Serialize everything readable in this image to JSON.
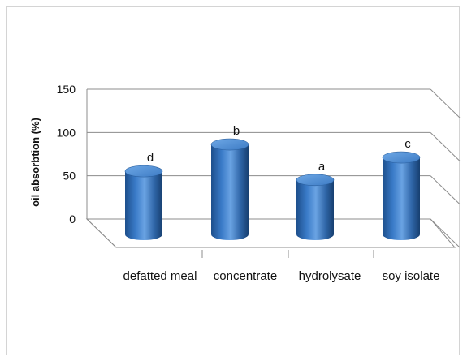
{
  "chart_data": {
    "type": "bar",
    "style": "3d-cylinder",
    "categories": [
      "defatted meal",
      "concentrate",
      "hydrolysate",
      "soy isolate"
    ],
    "series": [
      {
        "values": [
          73,
          104,
          63,
          89
        ],
        "labels": [
          "d",
          "b",
          "a",
          "c"
        ],
        "color": "#3a78c2"
      }
    ],
    "xlabel": "",
    "ylabel": "oil absorbtion (%)",
    "ylim": [
      0,
      150
    ],
    "yticks": [
      0,
      50,
      100,
      150
    ],
    "grid": true,
    "gridColor": "#8c8c8c"
  }
}
